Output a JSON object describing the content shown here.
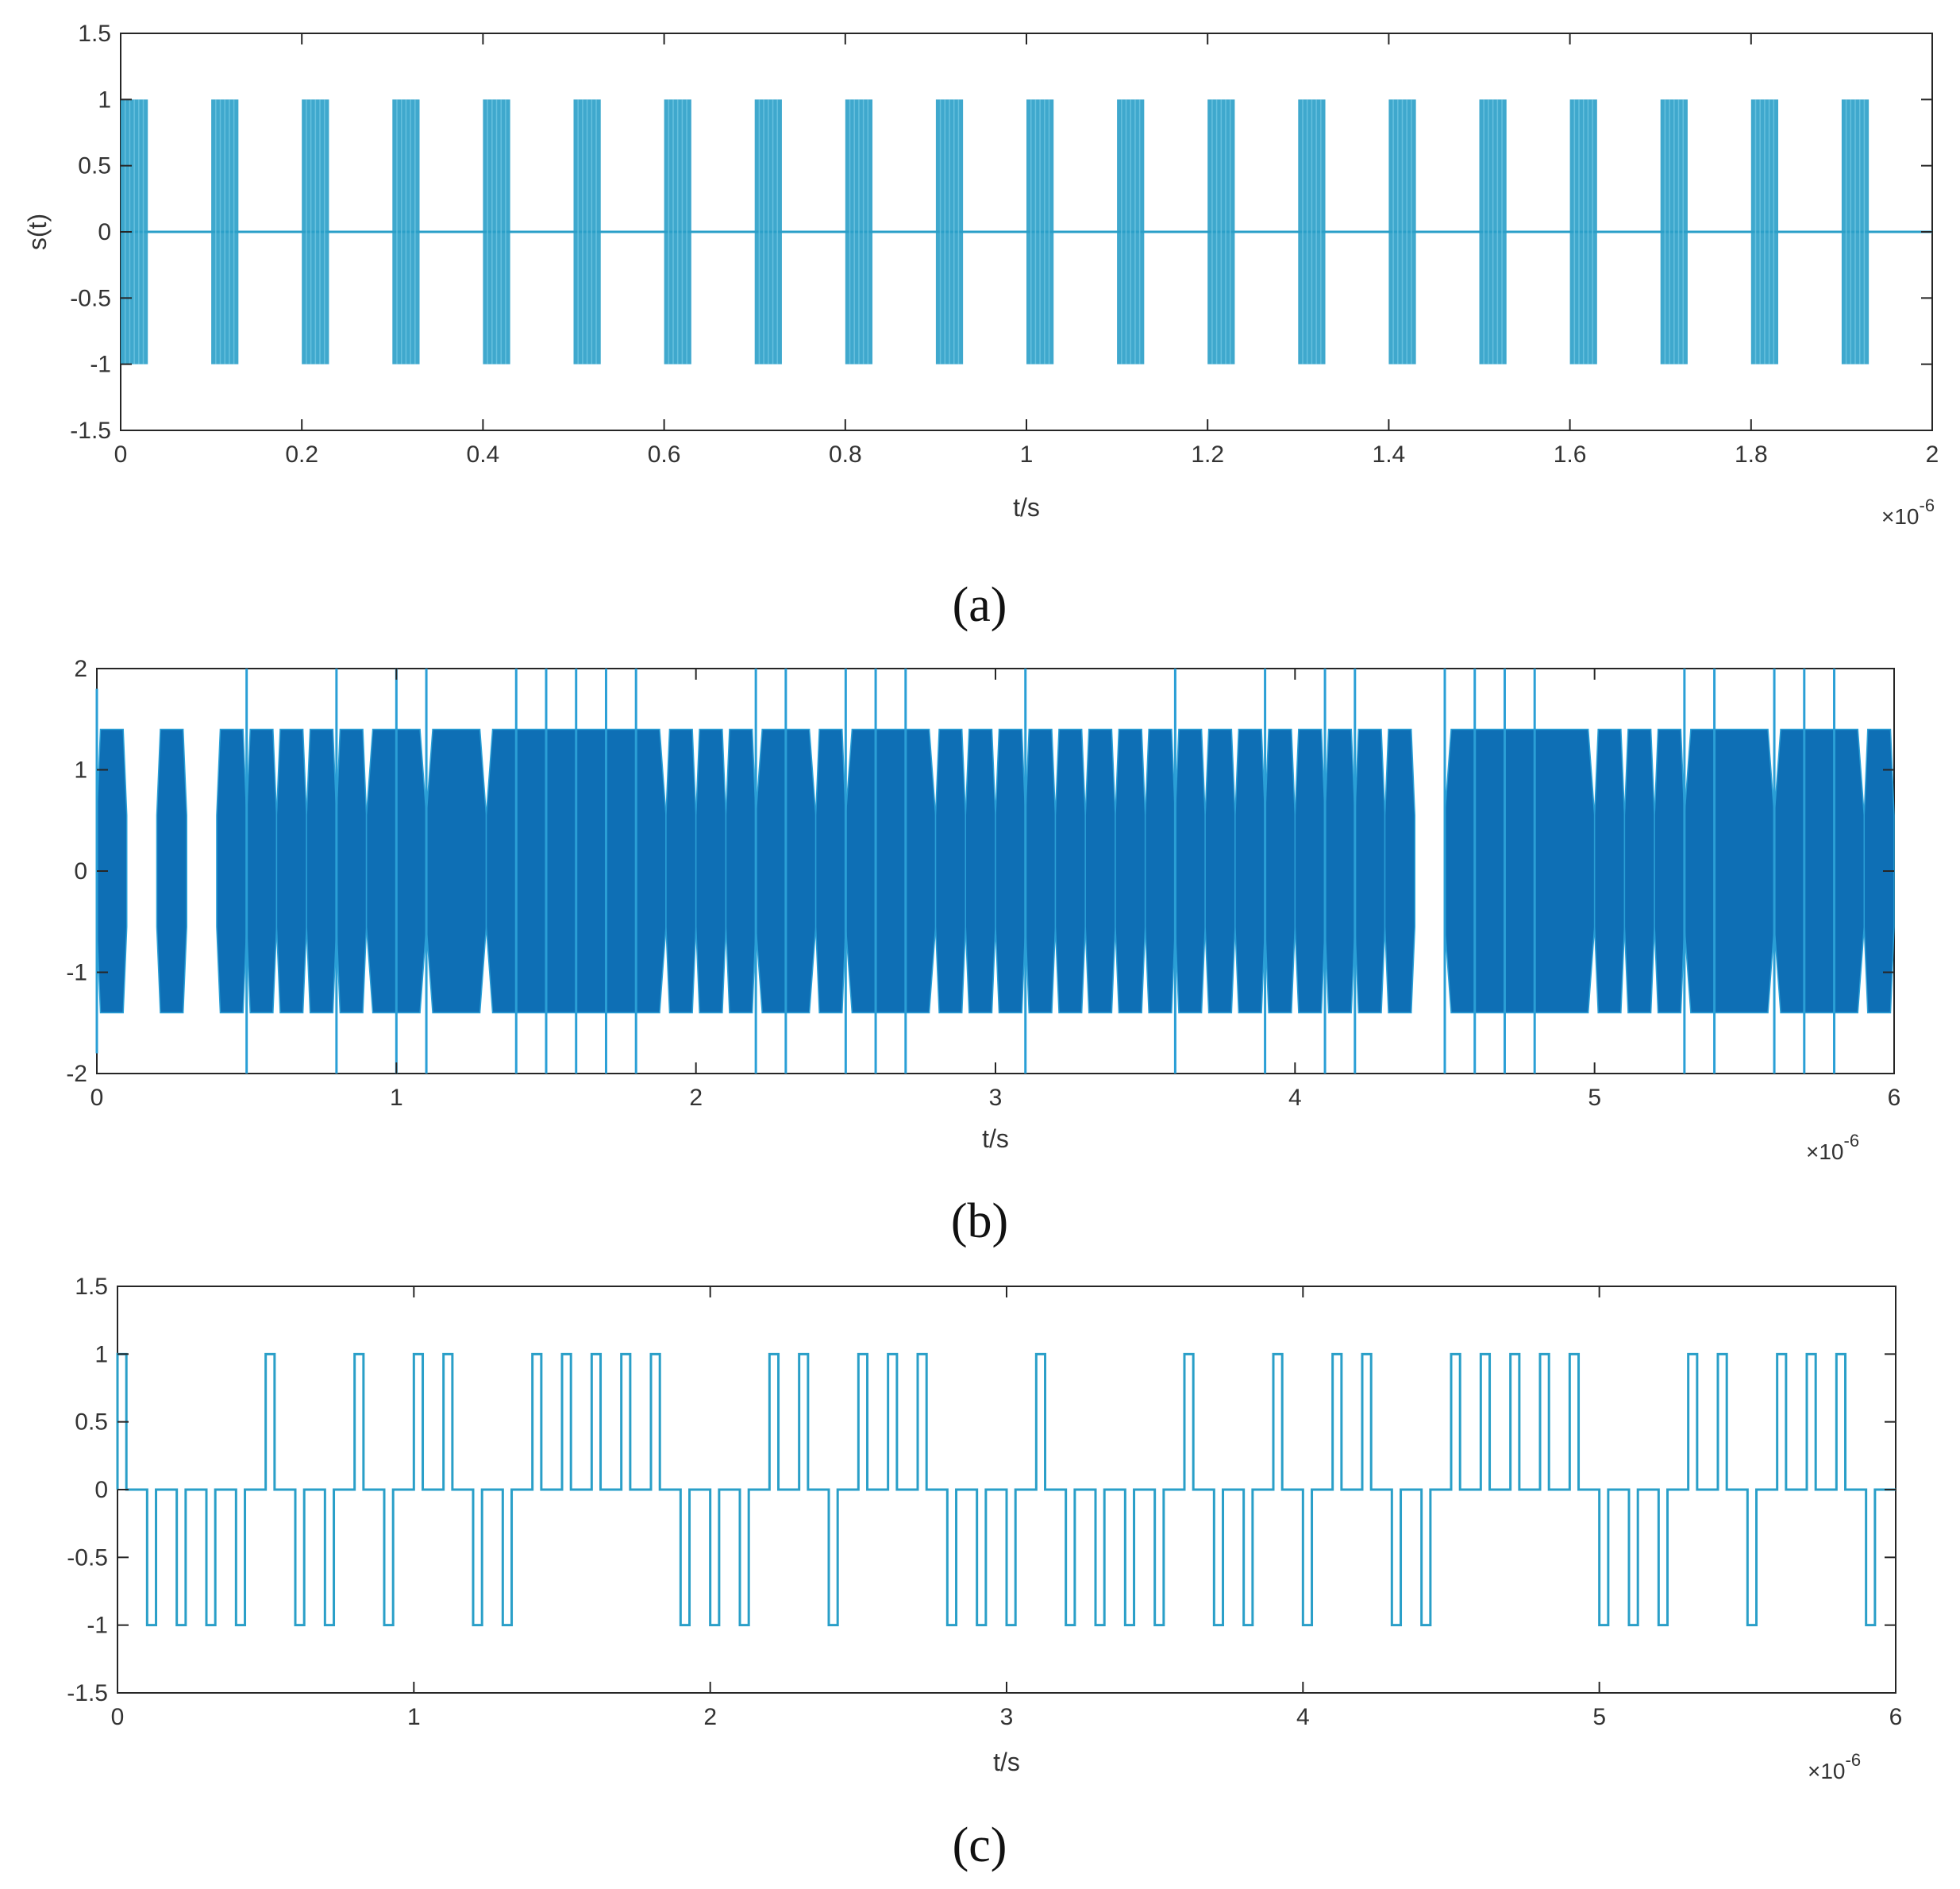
{
  "chart_data": [
    {
      "panel": "a",
      "caption": "(a)",
      "type": "line",
      "signal": "pulse-train",
      "xlabel": "t/s",
      "x_exponent": "×10",
      "x_exponent_power": "-6",
      "ylabel": "s(t)",
      "xlim": [
        0,
        2
      ],
      "ylim": [
        -1.5,
        1.5
      ],
      "xticks": [
        "0",
        "0.2",
        "0.4",
        "0.6",
        "0.8",
        "1",
        "1.2",
        "1.4",
        "1.6",
        "1.8",
        "2"
      ],
      "yticks": [
        "-1.5",
        "-1",
        "-0.5",
        "0",
        "0.5",
        "1",
        "1.5"
      ],
      "pulse_starts": [
        0,
        0.1,
        0.2,
        0.3,
        0.4,
        0.5,
        0.6,
        0.7,
        0.8,
        0.9,
        1.0,
        1.1,
        1.2,
        1.3,
        1.4,
        1.5,
        1.6,
        1.7,
        1.8,
        1.9
      ],
      "pulse_width": 0.03,
      "amplitude": 1,
      "color": "#2a9fc8",
      "grid": false
    },
    {
      "panel": "b",
      "caption": "(b)",
      "type": "line",
      "signal": "envelope",
      "xlabel": "t/s",
      "x_exponent": "×10",
      "x_exponent_power": "-6",
      "ylabel": "",
      "xlim": [
        0,
        6
      ],
      "ylim": [
        -2,
        2
      ],
      "xticks": [
        "0",
        "1",
        "2",
        "3",
        "4",
        "5",
        "6"
      ],
      "yticks": [
        "-2",
        "-1",
        "0",
        "1",
        "2"
      ],
      "envelope_blocks": [
        [
          0,
          0.1
        ],
        [
          0.2,
          0.3
        ],
        [
          0.4,
          0.5
        ],
        [
          0.5,
          0.6
        ],
        [
          0.6,
          0.7
        ],
        [
          0.7,
          0.8
        ],
        [
          0.8,
          0.9
        ],
        [
          0.9,
          1.1
        ],
        [
          1.1,
          1.3
        ],
        [
          1.3,
          1.9
        ],
        [
          1.9,
          2.0
        ],
        [
          2.0,
          2.1
        ],
        [
          2.1,
          2.2
        ],
        [
          2.2,
          2.4
        ],
        [
          2.4,
          2.5
        ],
        [
          2.5,
          2.8
        ],
        [
          2.8,
          2.9
        ],
        [
          2.9,
          3.0
        ],
        [
          3.0,
          3.1
        ],
        [
          3.1,
          3.2
        ],
        [
          3.2,
          3.3
        ],
        [
          3.3,
          3.4
        ],
        [
          3.4,
          3.5
        ],
        [
          3.5,
          3.6
        ],
        [
          3.6,
          3.7
        ],
        [
          3.7,
          3.8
        ],
        [
          3.8,
          3.9
        ],
        [
          3.9,
          4.0
        ],
        [
          4.0,
          4.1
        ],
        [
          4.1,
          4.2
        ],
        [
          4.2,
          4.3
        ],
        [
          4.3,
          4.4
        ],
        [
          4.5,
          5.0
        ],
        [
          5.0,
          5.1
        ],
        [
          5.1,
          5.2
        ],
        [
          5.2,
          5.3
        ],
        [
          5.3,
          5.6
        ],
        [
          5.6,
          5.9
        ],
        [
          5.9,
          6.0
        ]
      ],
      "inner_amplitude": 1.4,
      "spike_amplitude": 2,
      "spike_times": [
        0.5,
        0.8,
        1.0,
        1.1,
        1.4,
        1.5,
        1.6,
        1.7,
        1.8,
        2.2,
        2.3,
        2.5,
        2.6,
        2.7,
        3.1,
        3.6,
        3.9,
        4.1,
        4.2,
        4.5,
        4.6,
        4.7,
        4.8,
        5.3,
        5.4,
        5.6,
        5.7,
        5.8
      ],
      "color": "#0e6fb5",
      "grid": false
    },
    {
      "panel": "c",
      "caption": "(c)",
      "type": "line",
      "signal": "ternary-code",
      "xlabel": "t/s",
      "x_exponent": "×10",
      "x_exponent_power": "-6",
      "ylabel": "",
      "xlim": [
        0,
        6
      ],
      "ylim": [
        -1.5,
        1.5
      ],
      "xticks": [
        "0",
        "1",
        "2",
        "3",
        "4",
        "5",
        "6"
      ],
      "yticks": [
        "-1.5",
        "-1",
        "-0.5",
        "0",
        "0.5",
        "1",
        "1.5"
      ],
      "pulse_width": 0.03,
      "pulses": [
        {
          "t": 0.0,
          "v": 1
        },
        {
          "t": 0.1,
          "v": -1
        },
        {
          "t": 0.2,
          "v": -1
        },
        {
          "t": 0.3,
          "v": -1
        },
        {
          "t": 0.4,
          "v": -1
        },
        {
          "t": 0.5,
          "v": 1
        },
        {
          "t": 0.6,
          "v": -1
        },
        {
          "t": 0.7,
          "v": -1
        },
        {
          "t": 0.8,
          "v": 1
        },
        {
          "t": 0.9,
          "v": -1
        },
        {
          "t": 1.0,
          "v": 1
        },
        {
          "t": 1.1,
          "v": 1
        },
        {
          "t": 1.2,
          "v": -1
        },
        {
          "t": 1.3,
          "v": -1
        },
        {
          "t": 1.4,
          "v": 1
        },
        {
          "t": 1.5,
          "v": 1
        },
        {
          "t": 1.6,
          "v": 1
        },
        {
          "t": 1.7,
          "v": 1
        },
        {
          "t": 1.8,
          "v": 1
        },
        {
          "t": 1.9,
          "v": -1
        },
        {
          "t": 2.0,
          "v": -1
        },
        {
          "t": 2.1,
          "v": -1
        },
        {
          "t": 2.2,
          "v": 1
        },
        {
          "t": 2.3,
          "v": 1
        },
        {
          "t": 2.4,
          "v": -1
        },
        {
          "t": 2.5,
          "v": 1
        },
        {
          "t": 2.6,
          "v": 1
        },
        {
          "t": 2.7,
          "v": 1
        },
        {
          "t": 2.8,
          "v": -1
        },
        {
          "t": 2.9,
          "v": -1
        },
        {
          "t": 3.0,
          "v": -1
        },
        {
          "t": 3.1,
          "v": 1
        },
        {
          "t": 3.2,
          "v": -1
        },
        {
          "t": 3.3,
          "v": -1
        },
        {
          "t": 3.4,
          "v": -1
        },
        {
          "t": 3.5,
          "v": -1
        },
        {
          "t": 3.6,
          "v": 1
        },
        {
          "t": 3.7,
          "v": -1
        },
        {
          "t": 3.8,
          "v": -1
        },
        {
          "t": 3.9,
          "v": 1
        },
        {
          "t": 4.0,
          "v": -1
        },
        {
          "t": 4.1,
          "v": 1
        },
        {
          "t": 4.2,
          "v": 1
        },
        {
          "t": 4.3,
          "v": -1
        },
        {
          "t": 4.4,
          "v": -1
        },
        {
          "t": 4.5,
          "v": 1
        },
        {
          "t": 4.6,
          "v": 1
        },
        {
          "t": 4.7,
          "v": 1
        },
        {
          "t": 4.8,
          "v": 1
        },
        {
          "t": 4.9,
          "v": 1
        },
        {
          "t": 5.0,
          "v": -1
        },
        {
          "t": 5.1,
          "v": -1
        },
        {
          "t": 5.2,
          "v": -1
        },
        {
          "t": 5.3,
          "v": 1
        },
        {
          "t": 5.4,
          "v": 1
        },
        {
          "t": 5.5,
          "v": -1
        },
        {
          "t": 5.6,
          "v": 1
        },
        {
          "t": 5.7,
          "v": 1
        },
        {
          "t": 5.8,
          "v": 1
        },
        {
          "t": 5.9,
          "v": -1
        }
      ],
      "color": "#2a9fc8",
      "grid": false
    }
  ]
}
